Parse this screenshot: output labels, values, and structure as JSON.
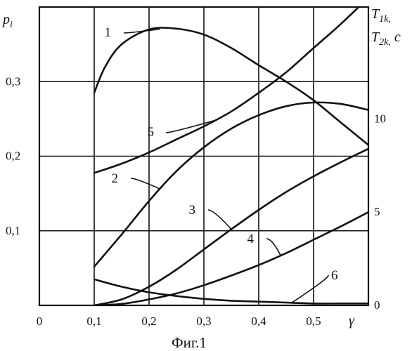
{
  "caption": "Фиг.1",
  "chart_data": {
    "type": "line",
    "xlabel": "γ",
    "ylabel_left": "p_i",
    "ylabel_right_1": "T_1k,",
    "ylabel_right_2": "T_2k, c",
    "xlim": [
      0,
      0.6
    ],
    "ylim_left": [
      0,
      0.4
    ],
    "ylim_right": [
      0,
      16
    ],
    "grid": true,
    "x_ticks": [
      {
        "value": 0,
        "label": "0"
      },
      {
        "value": 0.1,
        "label": "0,1"
      },
      {
        "value": 0.2,
        "label": "0,2"
      },
      {
        "value": 0.3,
        "label": "0,3"
      },
      {
        "value": 0.4,
        "label": "0,4"
      },
      {
        "value": 0.5,
        "label": "0,5"
      }
    ],
    "y_ticks_left": [
      {
        "value": 0.1,
        "label": "0,1"
      },
      {
        "value": 0.2,
        "label": "0,2"
      },
      {
        "value": 0.3,
        "label": "0,3"
      }
    ],
    "y_ticks_right": [
      {
        "value": 0,
        "label": "0"
      },
      {
        "value": 5,
        "label": "5"
      },
      {
        "value": 10,
        "label": "10"
      }
    ],
    "series": [
      {
        "name": "1",
        "axis": "left",
        "x": [
          0.1,
          0.12,
          0.15,
          0.2,
          0.25,
          0.3,
          0.35,
          0.4,
          0.45,
          0.5,
          0.55,
          0.6
        ],
        "y": [
          0.285,
          0.32,
          0.35,
          0.37,
          0.371,
          0.363,
          0.345,
          0.322,
          0.3,
          0.275,
          0.245,
          0.215
        ]
      },
      {
        "name": "2",
        "axis": "left",
        "x": [
          0.1,
          0.15,
          0.2,
          0.25,
          0.3,
          0.35,
          0.4,
          0.45,
          0.5,
          0.55,
          0.6
        ],
        "y": [
          0.052,
          0.095,
          0.14,
          0.18,
          0.212,
          0.237,
          0.255,
          0.267,
          0.272,
          0.27,
          0.262
        ]
      },
      {
        "name": "3",
        "axis": "left",
        "x": [
          0.1,
          0.15,
          0.2,
          0.25,
          0.3,
          0.35,
          0.4,
          0.45,
          0.5,
          0.55,
          0.6
        ],
        "y": [
          0.0,
          0.008,
          0.025,
          0.048,
          0.075,
          0.102,
          0.128,
          0.152,
          0.173,
          0.192,
          0.21
        ]
      },
      {
        "name": "4",
        "axis": "left",
        "x": [
          0.1,
          0.15,
          0.2,
          0.25,
          0.3,
          0.35,
          0.4,
          0.45,
          0.5,
          0.55,
          0.6
        ],
        "y": [
          0.0,
          0.002,
          0.008,
          0.016,
          0.027,
          0.04,
          0.054,
          0.07,
          0.088,
          0.106,
          0.125
        ]
      },
      {
        "name": "5",
        "axis": "right",
        "x": [
          0.1,
          0.15,
          0.2,
          0.25,
          0.3,
          0.35,
          0.4,
          0.45,
          0.5,
          0.55,
          0.6
        ],
        "y": [
          7.1,
          7.6,
          8.2,
          8.9,
          9.6,
          10.4,
          11.4,
          12.5,
          13.8,
          15.1,
          16.5
        ]
      },
      {
        "name": "6",
        "axis": "right",
        "x": [
          0.1,
          0.15,
          0.2,
          0.25,
          0.3,
          0.35,
          0.4,
          0.45,
          0.5,
          0.55,
          0.6
        ],
        "y": [
          1.4,
          1.0,
          0.7,
          0.5,
          0.35,
          0.25,
          0.2,
          0.15,
          0.1,
          0.1,
          0.1
        ]
      }
    ]
  }
}
